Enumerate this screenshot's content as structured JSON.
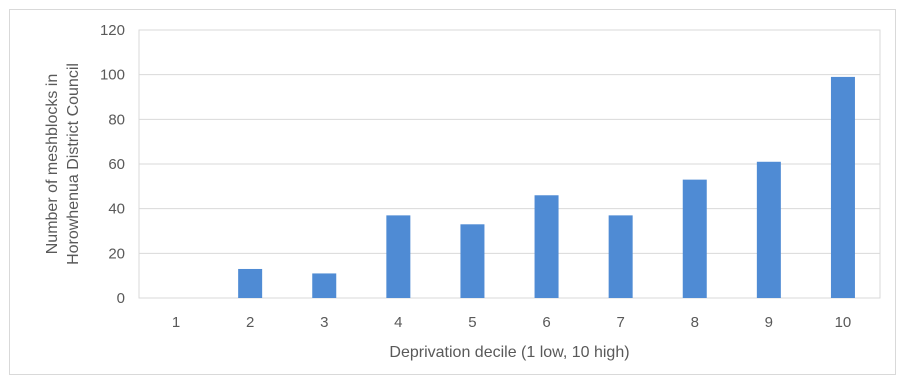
{
  "chart_data": {
    "type": "bar",
    "categories": [
      "1",
      "2",
      "3",
      "4",
      "5",
      "6",
      "7",
      "8",
      "9",
      "10"
    ],
    "values": [
      0,
      13,
      11,
      37,
      33,
      46,
      37,
      53,
      61,
      99
    ],
    "xlabel": "Deprivation decile (1 low, 10 high)",
    "ylabel_lines": [
      "Number of meshblocks in",
      "Horowhenua District Council"
    ],
    "ylim": [
      0,
      120
    ],
    "yticks": [
      0,
      20,
      40,
      60,
      80,
      100,
      120
    ],
    "grid": true,
    "legend": "none",
    "colors": {
      "bar": "#4f8bd4",
      "grid": "#d9d9d9",
      "axis": "#bfbfbf",
      "text": "#595959"
    }
  }
}
